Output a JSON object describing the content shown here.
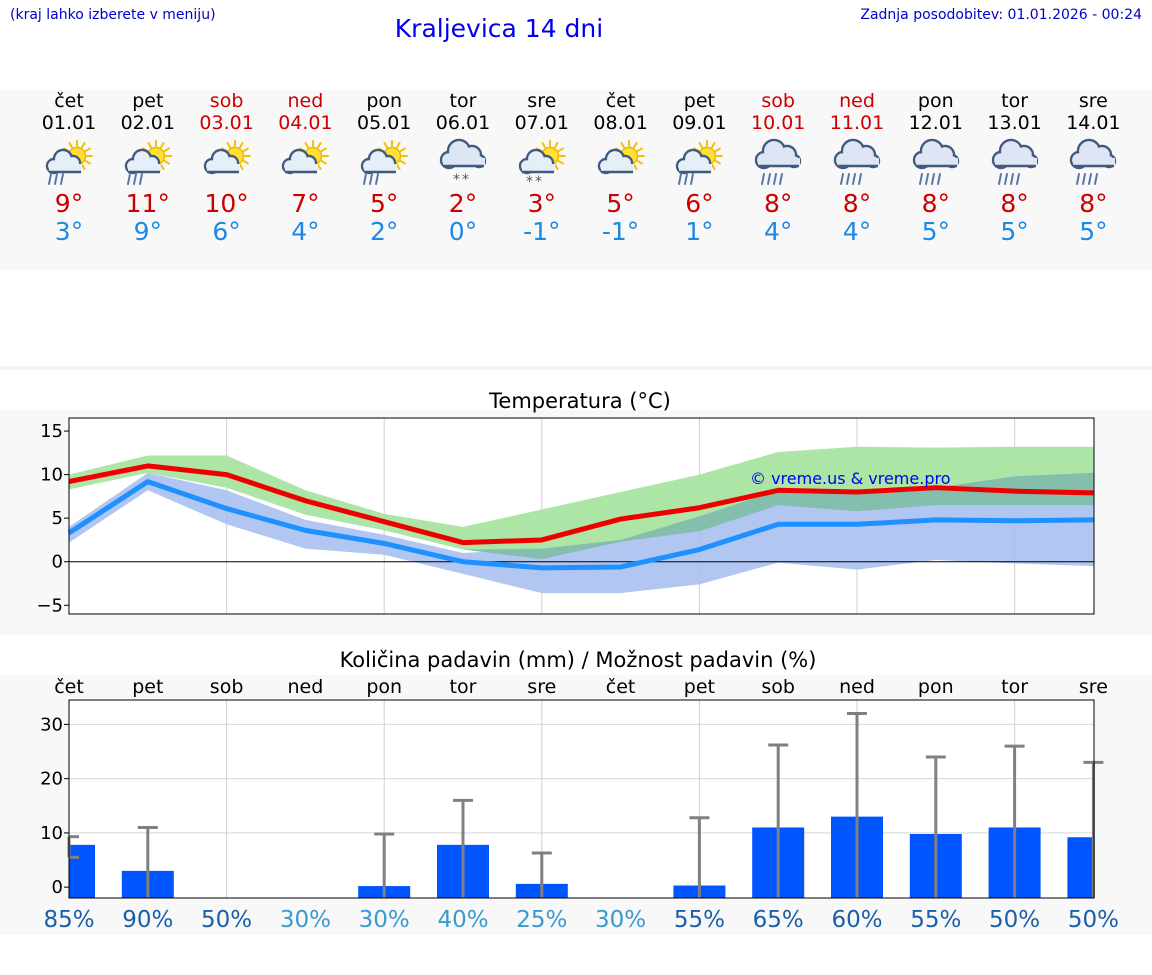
{
  "header": {
    "hint": "(kraj lahko izberete v meniju)",
    "title": "Kraljevica 14 dni",
    "updated": "Zadnja posodobitev: 01.01.2026 - 00:24"
  },
  "days": [
    {
      "name": "čet",
      "date": "01.01",
      "weekend": false,
      "max": "9°",
      "min": "3°",
      "icon": "sun-cloud-rain-icon",
      "cond": "rain"
    },
    {
      "name": "pet",
      "date": "02.01",
      "weekend": false,
      "max": "11°",
      "min": "9°",
      "icon": "sun-cloud-rain-icon",
      "cond": "rain"
    },
    {
      "name": "sob",
      "date": "03.01",
      "weekend": true,
      "max": "10°",
      "min": "6°",
      "icon": "sun-cloud-icon",
      "cond": "none"
    },
    {
      "name": "ned",
      "date": "04.01",
      "weekend": true,
      "max": "7°",
      "min": "4°",
      "icon": "sun-cloud-icon",
      "cond": "none"
    },
    {
      "name": "pon",
      "date": "05.01",
      "weekend": false,
      "max": "5°",
      "min": "2°",
      "icon": "sun-cloud-rain-icon",
      "cond": "rain"
    },
    {
      "name": "tor",
      "date": "06.01",
      "weekend": false,
      "max": "2°",
      "min": "0°",
      "icon": "cloud-snow-icon",
      "cond": "snow"
    },
    {
      "name": "sre",
      "date": "07.01",
      "weekend": false,
      "max": "3°",
      "min": "-1°",
      "icon": "sun-cloud-snow-icon",
      "cond": "snow"
    },
    {
      "name": "čet",
      "date": "08.01",
      "weekend": false,
      "max": "5°",
      "min": "-1°",
      "icon": "sun-cloud-icon",
      "cond": "none"
    },
    {
      "name": "pet",
      "date": "09.01",
      "weekend": false,
      "max": "6°",
      "min": "1°",
      "icon": "sun-cloud-rain-icon",
      "cond": "rain"
    },
    {
      "name": "sob",
      "date": "10.01",
      "weekend": true,
      "max": "8°",
      "min": "4°",
      "icon": "cloud-rain-icon",
      "cond": "rain"
    },
    {
      "name": "ned",
      "date": "11.01",
      "weekend": true,
      "max": "8°",
      "min": "4°",
      "icon": "cloud-rain-icon",
      "cond": "rain"
    },
    {
      "name": "pon",
      "date": "12.01",
      "weekend": false,
      "max": "8°",
      "min": "5°",
      "icon": "cloud-rain-icon",
      "cond": "rain"
    },
    {
      "name": "tor",
      "date": "13.01",
      "weekend": false,
      "max": "8°",
      "min": "5°",
      "icon": "cloud-rain-icon",
      "cond": "rain"
    },
    {
      "name": "sre",
      "date": "14.01",
      "weekend": false,
      "max": "8°",
      "min": "5°",
      "icon": "cloud-rain-icon",
      "cond": "rain"
    }
  ],
  "colors": {
    "max_line": "#ee0000",
    "min_line": "#1e90ff",
    "max_band": "#a8e4a0",
    "min_band": "#a8c0f0",
    "overlap_band": "#7fbfa6",
    "bar": "#0055ff",
    "whisker": "#808080",
    "pct_dark": "#1a5fa8",
    "pct_light": "#3a9ad0"
  },
  "chart_data": [
    {
      "type": "line",
      "title": "Temperatura (°C)",
      "watermark": "© vreme.us & vreme.pro",
      "x": [
        0,
        1,
        2,
        3,
        4,
        5,
        6,
        7,
        8,
        9,
        10,
        11,
        12,
        13
      ],
      "ylim": [
        -6,
        16.5
      ],
      "yticks": [
        -5,
        0,
        5,
        10,
        15
      ],
      "ytick_labels": [
        "−5",
        "0",
        "5",
        "10",
        "15"
      ],
      "series": [
        {
          "name": "max",
          "values": [
            9.2,
            11,
            10,
            7,
            4.6,
            2.2,
            2.5,
            4.9,
            6.2,
            8.2,
            8,
            8.5,
            8.1,
            7.9
          ]
        },
        {
          "name": "min",
          "values": [
            3.3,
            9.2,
            6.1,
            3.6,
            2.1,
            0,
            -0.7,
            -0.6,
            1.4,
            4.3,
            4.3,
            4.8,
            4.7,
            4.8
          ]
        }
      ],
      "max_band": {
        "upper": [
          10,
          12.2,
          12.2,
          8.2,
          5.5,
          4,
          6,
          8,
          10,
          12.6,
          13.2,
          13.1,
          13.2,
          13.2
        ],
        "lower": [
          8.3,
          10.2,
          8.5,
          5.4,
          3.6,
          1.4,
          0.3,
          2.3,
          3.5,
          6.5,
          5.8,
          6.5,
          6.5,
          6.5
        ]
      },
      "min_band": {
        "upper": [
          4,
          10.2,
          8.2,
          4.8,
          3.1,
          1,
          1.5,
          2.5,
          5.2,
          8.2,
          7.8,
          8.5,
          9.8,
          10.2
        ],
        "lower": [
          2.2,
          8.2,
          4.3,
          1.5,
          0.8,
          -1.4,
          -3.6,
          -3.6,
          -2.6,
          -0.1,
          -0.9,
          0.2,
          -0.2,
          -0.5
        ]
      }
    },
    {
      "type": "bar",
      "title": "Količina padavin (mm) / Možnost padavin (%)",
      "categories": [
        "čet",
        "pet",
        "sob",
        "ned",
        "pon",
        "tor",
        "sre",
        "čet",
        "pet",
        "sob",
        "ned",
        "pon",
        "tor",
        "sre"
      ],
      "ylim": [
        -2,
        34.5
      ],
      "yticks": [
        0,
        10,
        20,
        30
      ],
      "ytick_labels": [
        "0",
        "10",
        "20",
        "30"
      ],
      "values": [
        7.8,
        3.0,
        0,
        0,
        0.2,
        7.8,
        0.6,
        0,
        0.3,
        11,
        13,
        9.8,
        11,
        9.2
      ],
      "whisker_high": [
        9.3,
        11,
        0,
        0,
        9.8,
        16,
        6.3,
        0,
        12.8,
        26.2,
        32,
        24,
        26,
        23
      ],
      "whisker_low": [
        5.5,
        0,
        0,
        0,
        0,
        0,
        0,
        0,
        0,
        0,
        0,
        0,
        0,
        0
      ],
      "probability": [
        "85%",
        "90%",
        "50%",
        "30%",
        "30%",
        "40%",
        "25%",
        "30%",
        "55%",
        "65%",
        "60%",
        "55%",
        "50%",
        "50%"
      ],
      "probability_values": [
        85,
        90,
        50,
        30,
        30,
        40,
        25,
        30,
        55,
        65,
        60,
        55,
        50,
        50
      ]
    }
  ]
}
